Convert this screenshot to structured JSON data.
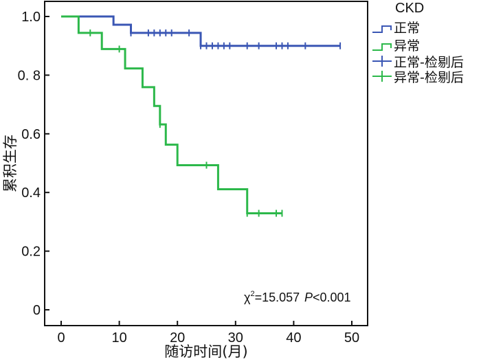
{
  "chart_data": {
    "type": "line",
    "subtype": "kaplan-meier",
    "xlabel": "随访时间(月)",
    "ylabel": "累积生存",
    "xlim": [
      -3,
      53
    ],
    "ylim": [
      -0.055,
      1.05
    ],
    "x_ticks": [
      0,
      10,
      20,
      30,
      40,
      50
    ],
    "x_tick_labels": [
      "0",
      "10",
      "20",
      "30",
      "40",
      "50"
    ],
    "y_ticks": [
      0,
      0.2,
      0.4,
      0.6,
      0.8,
      1.0
    ],
    "y_tick_labels": [
      "0",
      "0.2",
      "0.4",
      "0.6",
      "0. 8",
      "1.0"
    ],
    "grid": false,
    "legend": {
      "title": "CKD",
      "placement": "top-right-outside",
      "entries": [
        "正常",
        "异常",
        "正常-检剔后",
        "异常-检剔后"
      ]
    },
    "annotation": {
      "chi_symbol": "χ",
      "chi_sup": "2",
      "chi_value": "=15.057",
      "p_symbol": "P",
      "p_value": "<0.001"
    },
    "series": [
      {
        "name": "正常",
        "color": "#3a56b4",
        "steps": [
          [
            0,
            1.0
          ],
          [
            9,
            0.972
          ],
          [
            12,
            0.944
          ],
          [
            24,
            0.9
          ]
        ],
        "end_x": 48,
        "censored": [
          12,
          15,
          16,
          17,
          18,
          19,
          22,
          24,
          25,
          26,
          27,
          28,
          29,
          32,
          34,
          37,
          38,
          39,
          42,
          48
        ]
      },
      {
        "name": "异常",
        "color": "#2cb84a",
        "steps": [
          [
            0,
            1.0
          ],
          [
            3,
            0.944
          ],
          [
            7,
            0.889
          ],
          [
            11,
            0.823
          ],
          [
            14,
            0.759
          ],
          [
            16,
            0.695
          ],
          [
            17,
            0.632
          ],
          [
            18,
            0.563
          ],
          [
            20,
            0.493
          ],
          [
            27,
            0.411
          ],
          [
            32,
            0.329
          ]
        ],
        "end_x": 38,
        "censored": [
          5,
          10,
          17,
          25,
          32,
          34,
          37,
          38
        ]
      }
    ]
  }
}
